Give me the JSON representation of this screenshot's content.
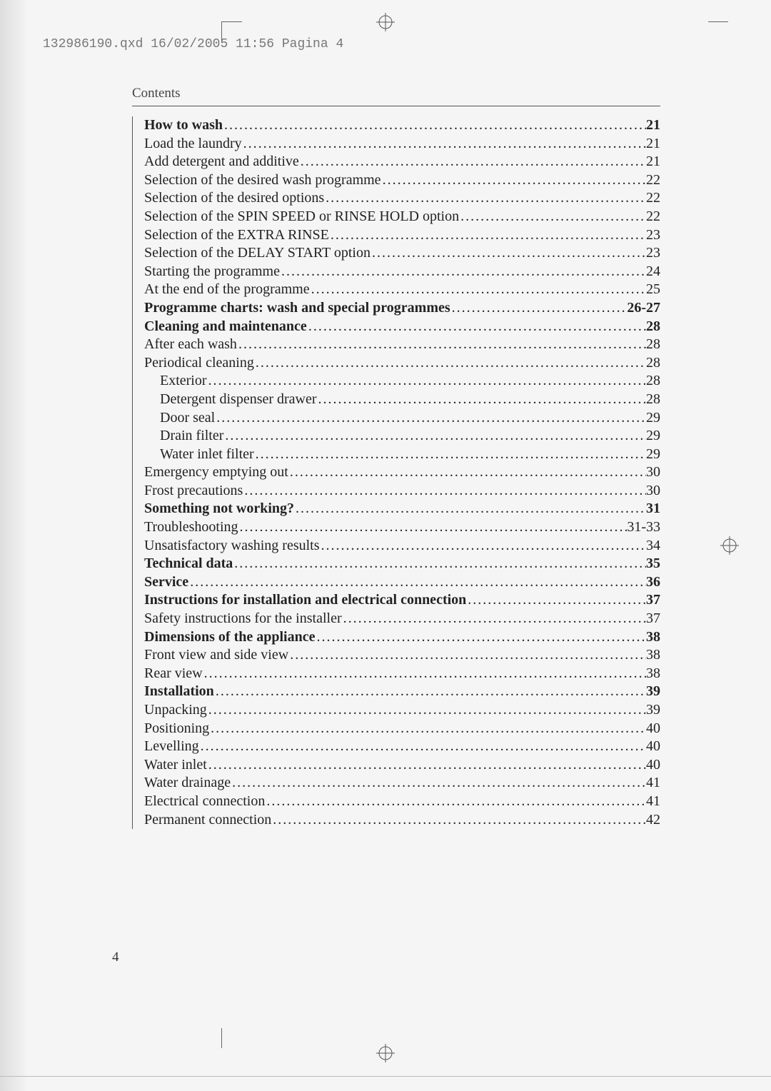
{
  "header": {
    "filepath": "132986190.qxd  16/02/2005  11:56  Pagina 4"
  },
  "section_title": "Contents",
  "page_number": "4",
  "toc": [
    {
      "label": "How to wash",
      "page": "21",
      "bold": true,
      "indent": 0
    },
    {
      "label": "Load the laundry",
      "page": "21",
      "bold": false,
      "indent": 0
    },
    {
      "label": "Add detergent and additive",
      "page": "21",
      "bold": false,
      "indent": 0
    },
    {
      "label": "Selection of the desired wash programme",
      "page": "22",
      "bold": false,
      "indent": 0
    },
    {
      "label": "Selection of the desired options",
      "page": "22",
      "bold": false,
      "indent": 0
    },
    {
      "label": "Selection of the SPIN SPEED or RINSE HOLD option",
      "page": "22",
      "bold": false,
      "indent": 0
    },
    {
      "label": "Selection of the EXTRA RINSE ",
      "page": "23",
      "bold": false,
      "indent": 0
    },
    {
      "label": "Selection of the DELAY START option",
      "page": "23",
      "bold": false,
      "indent": 0
    },
    {
      "label": "Starting the programme",
      "page": "24",
      "bold": false,
      "indent": 0
    },
    {
      "label": "At the end of the programme",
      "page": "25",
      "bold": false,
      "indent": 0
    },
    {
      "label": "Programme charts: wash and special programmes",
      "page": "26-27",
      "bold": true,
      "indent": 0
    },
    {
      "label": "Cleaning and maintenance",
      "page": "28",
      "bold": true,
      "indent": 0
    },
    {
      "label": "After each wash ",
      "page": "28",
      "bold": false,
      "indent": 0
    },
    {
      "label": "Periodical cleaning ",
      "page": "28",
      "bold": false,
      "indent": 0
    },
    {
      "label": "Exterior",
      "page": "28",
      "bold": false,
      "indent": 1
    },
    {
      "label": "Detergent dispenser drawer",
      "page": "28",
      "bold": false,
      "indent": 1
    },
    {
      "label": "Door seal",
      "page": "29",
      "bold": false,
      "indent": 1
    },
    {
      "label": "Drain filter",
      "page": "29",
      "bold": false,
      "indent": 1
    },
    {
      "label": "Water inlet filter",
      "page": "29",
      "bold": false,
      "indent": 1
    },
    {
      "label": "Emergency emptying out",
      "page": "30",
      "bold": false,
      "indent": 0
    },
    {
      "label": "Frost precautions",
      "page": "30",
      "bold": false,
      "indent": 0
    },
    {
      "label": "Something not working?",
      "page": "31",
      "bold": true,
      "indent": 0
    },
    {
      "label": "Troubleshooting",
      "page": "31-33",
      "bold": false,
      "indent": 0
    },
    {
      "label": "Unsatisfactory washing results",
      "page": "34",
      "bold": false,
      "indent": 0
    },
    {
      "label": "Technical data",
      "page": "35",
      "bold": true,
      "indent": 0
    },
    {
      "label": "Service ",
      "page": "36",
      "bold": true,
      "indent": 0
    },
    {
      "label": "Instructions for installation and electrical connection",
      "page": "37",
      "bold": true,
      "indent": 0
    },
    {
      "label": "Safety instructions for the installer",
      "page": "37",
      "bold": false,
      "indent": 0
    },
    {
      "label": "Dimensions of the appliance",
      "page": "38",
      "bold": true,
      "indent": 0
    },
    {
      "label": "Front view and side view",
      "page": "38",
      "bold": false,
      "indent": 0
    },
    {
      "label": "Rear view",
      "page": "38",
      "bold": false,
      "indent": 0
    },
    {
      "label": "Installation",
      "page": "39",
      "bold": true,
      "indent": 0
    },
    {
      "label": "Unpacking",
      "page": "39",
      "bold": false,
      "indent": 0
    },
    {
      "label": "Positioning",
      "page": "40",
      "bold": false,
      "indent": 0
    },
    {
      "label": "Levelling",
      "page": "40",
      "bold": false,
      "indent": 0
    },
    {
      "label": "Water inlet ",
      "page": "40",
      "bold": false,
      "indent": 0
    },
    {
      "label": "Water drainage",
      "page": "41",
      "bold": false,
      "indent": 0
    },
    {
      "label": "Electrical connection",
      "page": "41",
      "bold": false,
      "indent": 0
    },
    {
      "label": "Permanent connection",
      "page": "42",
      "bold": false,
      "indent": 0
    }
  ],
  "style": {
    "body_font": "Times New Roman",
    "mono_font": "Courier New",
    "bg": "#f5f5f5",
    "text": "#222",
    "rule": "#555"
  }
}
